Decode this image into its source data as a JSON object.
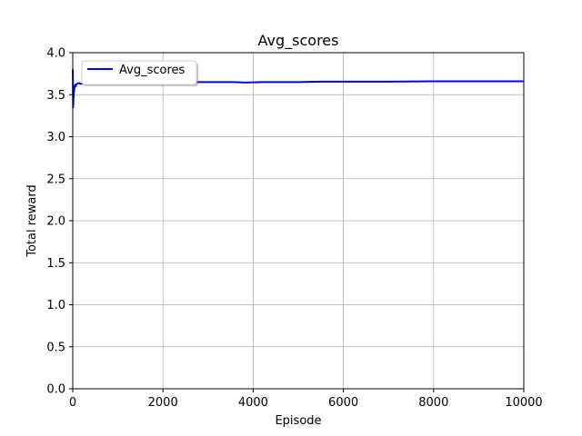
{
  "chart_data": {
    "type": "line",
    "title": "Avg_scores",
    "xlabel": "Episode",
    "ylabel": "Total reward",
    "xlim": [
      0,
      10000
    ],
    "ylim": [
      0.0,
      4.0
    ],
    "xticks": [
      0,
      2000,
      4000,
      6000,
      8000,
      10000
    ],
    "xtick_labels": [
      "0",
      "2000",
      "4000",
      "6000",
      "8000",
      "10000"
    ],
    "yticks": [
      0.0,
      0.5,
      1.0,
      1.5,
      2.0,
      2.5,
      3.0,
      3.5,
      4.0
    ],
    "ytick_labels": [
      "0.0",
      "0.5",
      "1.0",
      "1.5",
      "2.0",
      "2.5",
      "3.0",
      "3.5",
      "4.0"
    ],
    "grid": true,
    "legend_position": "top-left",
    "series": [
      {
        "name": "Avg_scores",
        "color": "#0000ff",
        "x": [
          1,
          8,
          15,
          25,
          35,
          45,
          55,
          65,
          80,
          100,
          130,
          170,
          220,
          300,
          450,
          700,
          1000,
          1500,
          2000,
          2500,
          2800,
          3200,
          3600,
          3800,
          4200,
          5000,
          5500,
          6000,
          7000,
          8000,
          9000,
          10000
        ],
        "y": [
          3.8,
          3.35,
          3.45,
          3.52,
          3.58,
          3.6,
          3.62,
          3.6,
          3.62,
          3.63,
          3.64,
          3.63,
          3.63,
          3.63,
          3.63,
          3.63,
          3.63,
          3.64,
          3.64,
          3.65,
          3.65,
          3.65,
          3.65,
          3.645,
          3.65,
          3.65,
          3.655,
          3.655,
          3.655,
          3.66,
          3.66,
          3.66
        ]
      }
    ]
  }
}
